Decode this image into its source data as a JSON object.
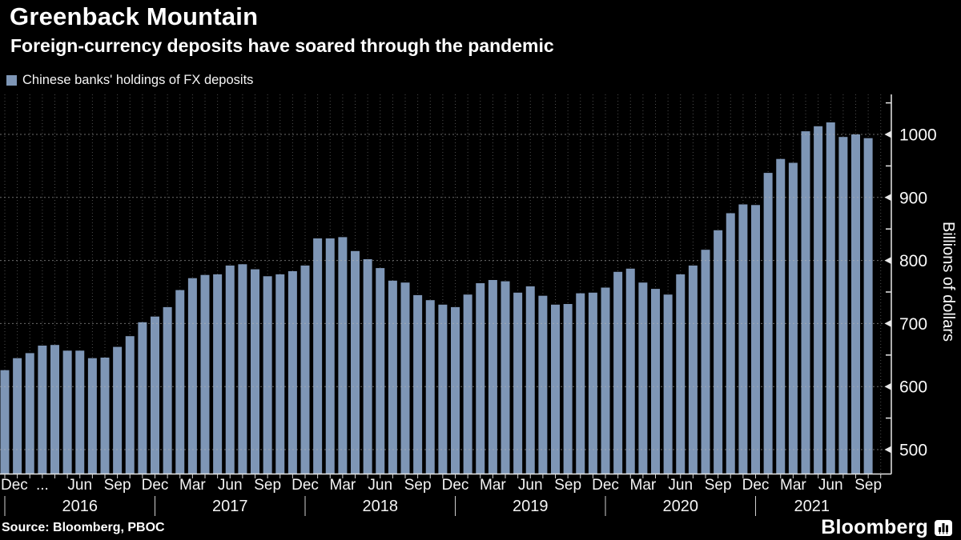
{
  "header": {
    "title": "Greenback Mountain",
    "subtitle": "Foreign-currency deposits have soared through the pandemic"
  },
  "legend": {
    "label": "Chinese banks' holdings of FX deposits",
    "swatch_color": "#7E96B6"
  },
  "source": {
    "label": "Source: Bloomberg, PBOC"
  },
  "branding": {
    "logo_text": "Bloomberg"
  },
  "chart_data": {
    "type": "bar",
    "title": "Greenback Mountain",
    "subtitle": "Foreign-currency deposits have soared through the pandemic",
    "series_name": "Chinese banks' holdings of FX deposits",
    "ylabel": "Billions of dollars",
    "xlabel": "",
    "ylim": [
      460,
      1060
    ],
    "grid": "dotted horizontal and vertical",
    "legend_position": "top-left",
    "bar_color": "#7E96B6",
    "background_color": "#000000",
    "y_ticks": [
      500,
      600,
      700,
      800,
      900,
      1000
    ],
    "y_minor_ticks": [
      550,
      650,
      750,
      850,
      950,
      1050
    ],
    "years": [
      "2016",
      "2017",
      "2018",
      "2019",
      "2020",
      "2021"
    ],
    "x_tick_labels": {
      "0": "Dec",
      "3": "...",
      "6": "Jun",
      "9": "Sep",
      "12": "Dec",
      "15": "Mar",
      "18": "Jun",
      "21": "Sep",
      "24": "Dec",
      "27": "Mar",
      "30": "Jun",
      "33": "Sep",
      "36": "Dec",
      "39": "Mar",
      "42": "Jun",
      "45": "Sep",
      "48": "Dec",
      "51": "Mar",
      "54": "Jun",
      "57": "Sep",
      "60": "Dec",
      "63": "Mar",
      "66": "Jun",
      "69": "Sep"
    },
    "x": [
      "Dec 2015",
      "Jan 2016",
      "Feb 2016",
      "Mar 2016",
      "Apr 2016",
      "May 2016",
      "Jun 2016",
      "Jul 2016",
      "Aug 2016",
      "Sep 2016",
      "Oct 2016",
      "Nov 2016",
      "Dec 2016",
      "Jan 2017",
      "Feb 2017",
      "Mar 2017",
      "Apr 2017",
      "May 2017",
      "Jun 2017",
      "Jul 2017",
      "Aug 2017",
      "Sep 2017",
      "Oct 2017",
      "Nov 2017",
      "Dec 2017",
      "Jan 2018",
      "Feb 2018",
      "Mar 2018",
      "Apr 2018",
      "May 2018",
      "Jun 2018",
      "Jul 2018",
      "Aug 2018",
      "Sep 2018",
      "Oct 2018",
      "Nov 2018",
      "Dec 2018",
      "Jan 2019",
      "Feb 2019",
      "Mar 2019",
      "Apr 2019",
      "May 2019",
      "Jun 2019",
      "Jul 2019",
      "Aug 2019",
      "Sep 2019",
      "Oct 2019",
      "Nov 2019",
      "Dec 2019",
      "Jan 2020",
      "Feb 2020",
      "Mar 2020",
      "Apr 2020",
      "May 2020",
      "Jun 2020",
      "Jul 2020",
      "Aug 2020",
      "Sep 2020",
      "Oct 2020",
      "Nov 2020",
      "Dec 2020",
      "Jan 2021",
      "Feb 2021",
      "Mar 2021",
      "Apr 2021",
      "May 2021",
      "Jun 2021",
      "Jul 2021",
      "Aug 2021",
      "Sep 2021"
    ],
    "values": [
      626,
      645,
      653,
      665,
      666,
      657,
      657,
      645,
      646,
      663,
      680,
      702,
      711,
      726,
      753,
      772,
      777,
      778,
      792,
      794,
      786,
      775,
      778,
      783,
      792,
      835,
      835,
      837,
      815,
      802,
      788,
      768,
      765,
      745,
      737,
      730,
      726,
      746,
      764,
      769,
      767,
      749,
      759,
      744,
      730,
      731,
      748,
      749,
      757,
      782,
      787,
      765,
      755,
      746,
      778,
      792,
      817,
      848,
      875,
      889,
      888,
      939,
      961,
      955,
      1005,
      1013,
      1019,
      996,
      1000,
      994
    ]
  }
}
